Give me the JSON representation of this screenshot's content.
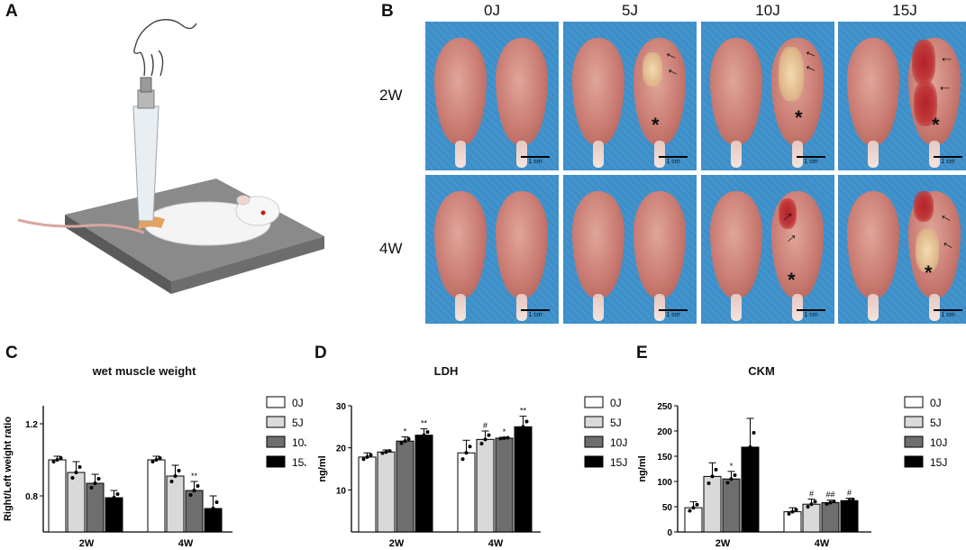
{
  "panels": {
    "a": "A",
    "b": "B",
    "c": "C",
    "d": "D",
    "e": "E"
  },
  "photo_grid": {
    "columns": [
      "0J",
      "5J",
      "10J",
      "15J"
    ],
    "rows": [
      "2W",
      "4W"
    ],
    "scale_bar": "1 cm",
    "marks": {
      "arrow": "→",
      "asterisk": "*"
    }
  },
  "legend": [
    "0J",
    "5J",
    "10J",
    "15J"
  ],
  "colors": {
    "0J": "#ffffff",
    "5J": "#d9d9d9",
    "10J": "#6e6e6e",
    "15J": "#000000",
    "photo_bg": "#3d8fc9"
  },
  "chart_data": [
    {
      "type": "bar",
      "title": "wet muscle weight",
      "ylabel": "Right/Left weight ratio",
      "xlabel": "",
      "categories": [
        "2W",
        "4W"
      ],
      "ylim": [
        0.6,
        1.3
      ],
      "yticks": [
        0.8,
        1.2
      ],
      "series": [
        {
          "name": "0J",
          "values": [
            1.0,
            1.0
          ],
          "err": [
            0.02,
            0.02
          ],
          "sig": [
            "",
            ""
          ]
        },
        {
          "name": "5J",
          "values": [
            0.93,
            0.91
          ],
          "err": [
            0.06,
            0.06
          ],
          "sig": [
            "",
            ""
          ]
        },
        {
          "name": "10J",
          "values": [
            0.87,
            0.83
          ],
          "err": [
            0.05,
            0.05
          ],
          "sig": [
            "",
            "**"
          ]
        },
        {
          "name": "15J",
          "values": [
            0.79,
            0.73
          ],
          "err": [
            0.04,
            0.07
          ],
          "sig": [
            "",
            ""
          ]
        }
      ]
    },
    {
      "type": "bar",
      "title": "LDH",
      "ylabel": "ng/ml",
      "xlabel": "",
      "categories": [
        "2W",
        "4W"
      ],
      "ylim": [
        0,
        30
      ],
      "yticks": [
        10,
        20,
        30
      ],
      "series": [
        {
          "name": "0J",
          "values": [
            17.8,
            18.8
          ],
          "err": [
            1.0,
            3.0
          ],
          "sig": [
            "",
            ""
          ]
        },
        {
          "name": "5J",
          "values": [
            19.0,
            22.0
          ],
          "err": [
            0.5,
            2.0
          ],
          "sig": [
            "",
            "#"
          ]
        },
        {
          "name": "10J",
          "values": [
            21.6,
            22.3
          ],
          "err": [
            1.0,
            0.2
          ],
          "sig": [
            "*",
            "*"
          ]
        },
        {
          "name": "15J",
          "values": [
            23.0,
            25.0
          ],
          "err": [
            1.5,
            2.5
          ],
          "sig": [
            "**",
            "**"
          ]
        }
      ]
    },
    {
      "type": "bar",
      "title": "CKM",
      "ylabel": "ng/ml",
      "xlabel": "",
      "categories": [
        "2W",
        "4W"
      ],
      "ylim": [
        0,
        250
      ],
      "yticks": [
        0,
        50,
        100,
        150,
        200,
        250
      ],
      "series": [
        {
          "name": "0J",
          "values": [
            48,
            40
          ],
          "err": [
            12,
            8
          ],
          "sig": [
            "",
            ""
          ]
        },
        {
          "name": "5J",
          "values": [
            110,
            55
          ],
          "err": [
            27,
            10
          ],
          "sig": [
            "",
            "#"
          ]
        },
        {
          "name": "10J",
          "values": [
            105,
            58
          ],
          "err": [
            15,
            5
          ],
          "sig": [
            "*",
            "##"
          ]
        },
        {
          "name": "15J",
          "values": [
            168,
            62
          ],
          "err": [
            57,
            5
          ],
          "sig": [
            "",
            "#"
          ]
        }
      ]
    }
  ]
}
